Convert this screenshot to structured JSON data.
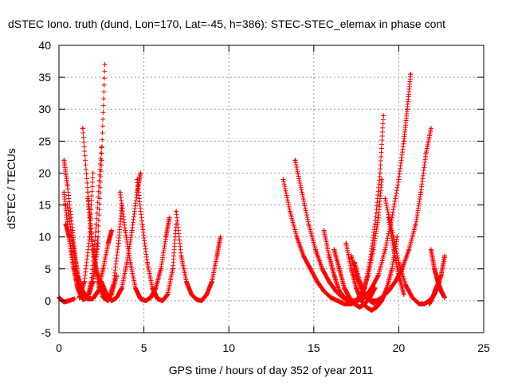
{
  "chart_data": {
    "type": "scatter",
    "title": "dSTEC Iono. truth (dund, Lon=170, Lat=-45, h=386): STEC-STEC_elemax in phase cont",
    "xlabel": "GPS time / hours of day 352 of year 2011",
    "ylabel": "dSTEC  / TECUs",
    "xlim": [
      0,
      25
    ],
    "ylim": [
      -5,
      40
    ],
    "xticks": [
      0,
      5,
      10,
      15,
      20,
      25
    ],
    "yticks": [
      -5,
      0,
      5,
      10,
      15,
      20,
      25,
      30,
      35,
      40
    ],
    "grid": true,
    "legend": "none",
    "marker": "plus",
    "color": "#ff0000",
    "series": [
      {
        "x": [
          0.0,
          0.3,
          0.6,
          0.9
        ],
        "y": [
          0.5,
          -0.2,
          0.0,
          0.3
        ]
      },
      {
        "x": [
          0.3,
          0.5,
          0.8,
          1.1,
          1.4,
          1.7,
          2.0,
          2.3,
          2.5,
          2.7
        ],
        "y": [
          17,
          12,
          6,
          2,
          0.3,
          0.5,
          3,
          10,
          22,
          37
        ]
      },
      {
        "x": [
          0.3,
          0.5,
          0.8,
          1.0,
          1.2,
          1.5,
          1.7,
          1.9,
          2.2,
          2.5
        ],
        "y": [
          22,
          18,
          11,
          6,
          2.5,
          0.3,
          0.5,
          3,
          12,
          24
        ]
      },
      {
        "x": [
          0.5,
          0.8,
          1.1,
          1.4,
          1.7,
          2.0,
          2.3,
          2.6,
          2.9,
          3.1
        ],
        "y": [
          15,
          9,
          4,
          1.5,
          0.3,
          0.3,
          1.5,
          5,
          9,
          11
        ]
      },
      {
        "x": [
          0.4,
          0.6,
          0.9,
          1.1,
          1.4,
          1.7,
          2.0,
          2.3
        ],
        "y": [
          12,
          10,
          5,
          2,
          0.2,
          0.5,
          3,
          9
        ]
      },
      {
        "x": [
          1.4,
          1.7,
          2.0,
          2.3,
          2.6,
          2.9,
          3.2,
          3.5,
          3.7
        ],
        "y": [
          27,
          17,
          8,
          3,
          0.5,
          0,
          2.5,
          9,
          15
        ]
      },
      {
        "x": [
          1.2,
          1.5,
          1.8,
          2.0
        ],
        "y": [
          0.5,
          3,
          10,
          20
        ]
      },
      {
        "x": [
          1.7,
          1.9,
          2.2,
          2.5,
          2.8,
          3.1,
          3.4
        ],
        "y": [
          16,
          10,
          5,
          2,
          0.4,
          1,
          4
        ]
      },
      {
        "x": [
          2.5,
          2.8,
          3.1,
          3.4,
          3.7,
          4.0,
          4.3,
          4.6,
          4.8
        ],
        "y": [
          3,
          1,
          0,
          0.5,
          2,
          6,
          11,
          17,
          20
        ]
      },
      {
        "x": [
          3.6,
          3.9,
          4.2,
          4.5,
          4.8,
          5.1,
          5.4,
          5.7,
          6.0,
          6.3,
          6.5
        ],
        "y": [
          17,
          11,
          6,
          2,
          0.3,
          0,
          0.5,
          2,
          5,
          10,
          13
        ]
      },
      {
        "x": [
          4.6,
          4.9,
          5.2,
          5.5,
          5.8,
          6.1,
          6.4,
          6.7,
          6.9
        ],
        "y": [
          19,
          12,
          6,
          2,
          0.3,
          0,
          1,
          5,
          12
        ]
      },
      {
        "x": [
          6.9,
          7.2,
          7.5,
          7.8,
          8.1,
          8.4,
          8.7,
          9.0,
          9.3,
          9.5
        ],
        "y": [
          14,
          7,
          3,
          1,
          0.2,
          0,
          1,
          3,
          7,
          10
        ]
      },
      {
        "x": [
          13.2,
          13.6,
          14.0,
          14.4,
          14.8,
          15.2,
          15.6,
          16.0,
          16.4,
          16.8,
          17.2,
          17.6,
          18.0,
          18.3,
          18.6,
          18.9,
          19.1
        ],
        "y": [
          19,
          14,
          10,
          7,
          5,
          3,
          1.5,
          0.5,
          0,
          -0.5,
          -0.5,
          0,
          2,
          6,
          12,
          20,
          29
        ]
      },
      {
        "x": [
          13.9,
          14.3,
          14.7,
          15.1,
          15.5,
          15.9,
          16.3,
          16.7,
          17.1,
          17.5,
          17.9,
          18.2,
          18.5,
          18.8,
          19.0
        ],
        "y": [
          22,
          17,
          12,
          8,
          5,
          3,
          1.5,
          0.5,
          0,
          0,
          1.5,
          4,
          8,
          13,
          19
        ]
      },
      {
        "x": [
          15.6,
          15.9,
          16.2,
          16.5,
          16.8,
          17.1,
          17.4,
          17.7,
          18.0,
          18.4,
          18.8,
          19.2,
          19.6,
          20.0,
          20.3,
          20.5,
          20.7
        ],
        "y": [
          11,
          7,
          4,
          1.5,
          0.5,
          0,
          0,
          0.2,
          0.5,
          2,
          4,
          8,
          13,
          19,
          25,
          30,
          35.5
        ]
      },
      {
        "x": [
          16.2,
          16.5,
          16.8,
          17.1,
          17.4,
          17.7,
          18.0,
          18.3,
          18.6
        ],
        "y": [
          8,
          5,
          2,
          0.5,
          -0.5,
          -1,
          -0.5,
          0.5,
          2
        ]
      },
      {
        "x": [
          16.9,
          17.2,
          17.5,
          17.8,
          18.1,
          18.4,
          18.7,
          19.0,
          19.3,
          19.6,
          19.9
        ],
        "y": [
          9,
          5,
          2,
          0,
          -1,
          -1.5,
          -1,
          0,
          2,
          5,
          10
        ]
      },
      {
        "x": [
          17.2,
          17.5,
          17.8,
          18.1,
          18.4,
          18.7,
          19.0,
          19.4,
          19.8,
          20.2,
          20.6,
          21.0,
          21.3,
          21.6,
          21.9
        ],
        "y": [
          7,
          4,
          2,
          0.5,
          0,
          0,
          0.5,
          1.5,
          3,
          5,
          8,
          12,
          17,
          23,
          27
        ]
      },
      {
        "x": [
          17.4,
          17.7,
          18.0,
          18.3,
          18.6
        ],
        "y": [
          6,
          3,
          1,
          0,
          -0.5
        ]
      },
      {
        "x": [
          19.2,
          19.6,
          20.0,
          20.4,
          20.8,
          21.2,
          21.5,
          21.8,
          22.1,
          22.4
        ],
        "y": [
          16,
          11,
          6,
          2.5,
          0.5,
          -0.5,
          -0.5,
          0,
          1,
          3
        ]
      },
      {
        "x": [
          19.4,
          19.7,
          20.0,
          20.3
        ],
        "y": [
          13,
          8,
          4,
          1
        ]
      },
      {
        "x": [
          21.9,
          22.1,
          22.3,
          22.5,
          22.7
        ],
        "y": [
          8,
          5,
          3,
          1.5,
          0.5
        ]
      },
      {
        "x": [
          21.8,
          22.0,
          22.2,
          22.5,
          22.7
        ],
        "y": [
          -0.5,
          0.5,
          2,
          4,
          7
        ]
      }
    ]
  }
}
